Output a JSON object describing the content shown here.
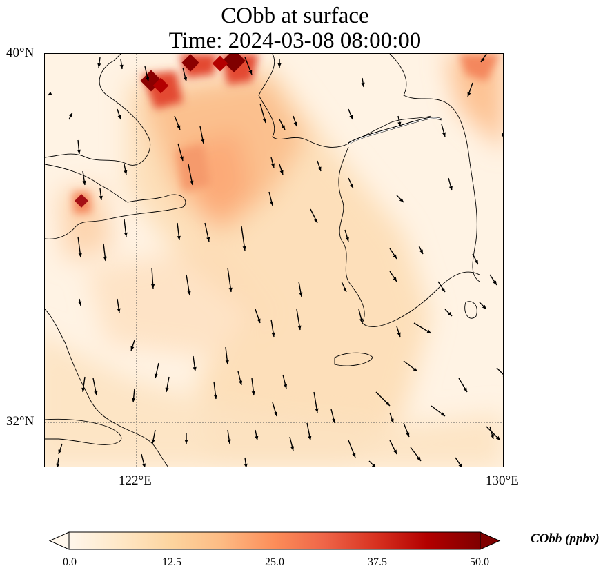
{
  "title": {
    "line1": "CObb at surface",
    "line2": "Time: 2024-03-08 08:00:00"
  },
  "map": {
    "lat_range": [
      31,
      40
    ],
    "lon_range": [
      120,
      130
    ],
    "gridlines": {
      "lons": [
        122
      ],
      "lats": [
        32
      ]
    },
    "lat_labels": [
      {
        "value": 40,
        "label": "40°N"
      },
      {
        "value": 32,
        "label": "32°N"
      }
    ],
    "lon_labels": [
      {
        "value": 122,
        "label": "122°E"
      },
      {
        "value": 130,
        "label": "130°E"
      }
    ],
    "colormap": "OrRd",
    "quiver": "wind vectors, predominantly northerly/northwesterly"
  },
  "colorbar": {
    "title": "CObb (ppbv)",
    "min": 0.0,
    "max": 50.0,
    "extend": "both",
    "ticks": [
      "0.0",
      "12.5",
      "25.0",
      "37.5",
      "50.0"
    ],
    "colors": [
      "#fff7ec",
      "#fee8c8",
      "#fdd49e",
      "#fdbb84",
      "#fc8d59",
      "#ef6548",
      "#d7301f",
      "#b30000",
      "#7f0000"
    ]
  }
}
